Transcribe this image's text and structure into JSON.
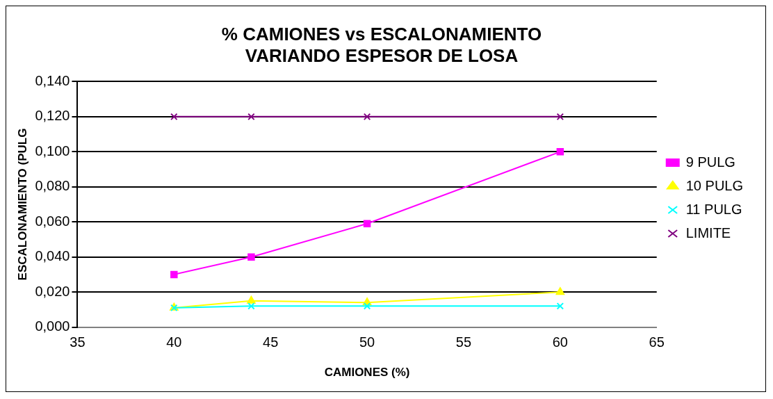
{
  "chart_data": {
    "type": "line",
    "title": "% CAMIONES vs ESCALONAMIENTO\nVARIANDO ESPESOR DE LOSA",
    "xlabel": "CAMIONES (%)",
    "ylabel": "ESCALONAMIENTO (PULG",
    "x": [
      40,
      44,
      50,
      60
    ],
    "series": [
      {
        "name": "9 PULG",
        "color": "#ff00ff",
        "marker": "square",
        "values": [
          0.03,
          0.04,
          0.059,
          0.1
        ]
      },
      {
        "name": "10 PULG",
        "color": "#ffff00",
        "marker": "triangle",
        "values": [
          0.011,
          0.015,
          0.014,
          0.02
        ]
      },
      {
        "name": "11 PULG",
        "color": "#00ffff",
        "marker": "cross",
        "values": [
          0.011,
          0.012,
          0.012,
          0.012
        ]
      },
      {
        "name": "LIMITE",
        "color": "#800080",
        "marker": "cross",
        "values": [
          0.12,
          0.12,
          0.12,
          0.12
        ]
      }
    ],
    "xlim": [
      35,
      65
    ],
    "xticks": [
      35,
      40,
      45,
      50,
      55,
      60,
      65
    ],
    "ylim": [
      0,
      0.14
    ],
    "yticks": [
      {
        "value": 0,
        "label": "0,000"
      },
      {
        "value": 0.02,
        "label": "0,020"
      },
      {
        "value": 0.04,
        "label": "0,040"
      },
      {
        "value": 0.06,
        "label": "0,060"
      },
      {
        "value": 0.08,
        "label": "0,080"
      },
      {
        "value": 0.1,
        "label": "0,100"
      },
      {
        "value": 0.12,
        "label": "0,120"
      },
      {
        "value": 0.14,
        "label": "0,140"
      }
    ],
    "grid": "y",
    "legend": "right"
  }
}
